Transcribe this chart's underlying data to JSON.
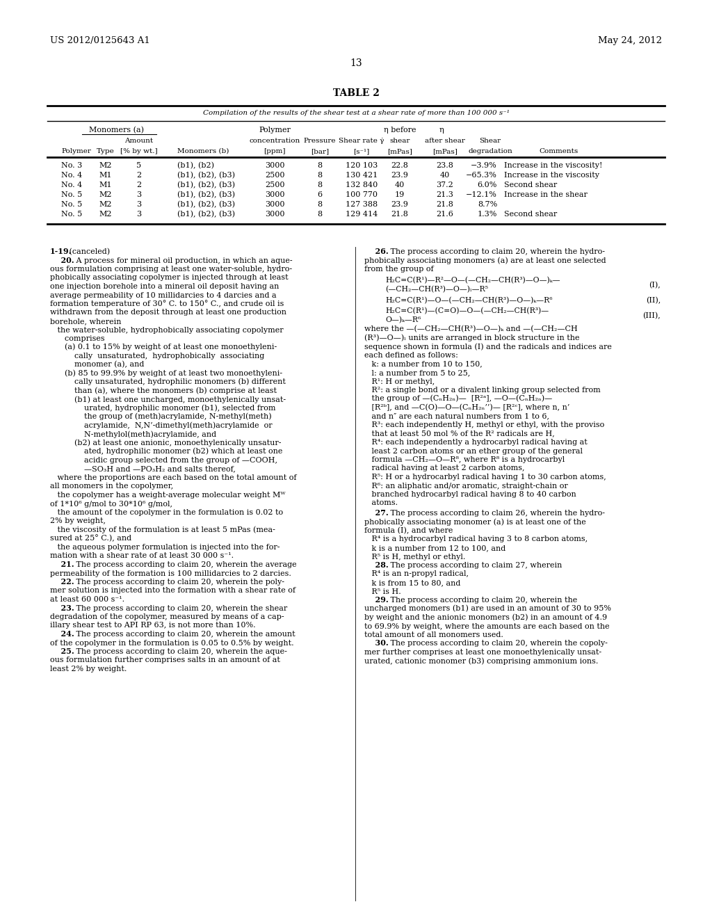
{
  "header_left": "US 2012/0125643 A1",
  "header_right": "May 24, 2012",
  "page_number": "13",
  "table_title": "TABLE 2",
  "table_subtitle": "Compilation of the results of the shear test at a shear rate of more than 100 000 s⁻¹",
  "table_data": [
    [
      "No. 3",
      "M2",
      "5",
      "(b1), (b2)",
      "3000",
      "8",
      "120 103",
      "22.8",
      "23.8",
      "−3.9%",
      "Increase in the viscosity!"
    ],
    [
      "No. 4",
      "M1",
      "2",
      "(b1), (b2), (b3)",
      "2500",
      "8",
      "130 421",
      "23.9",
      "40",
      "−65.3%",
      "Increase in the viscosity"
    ],
    [
      "No. 4",
      "M1",
      "2",
      "(b1), (b2), (b3)",
      "2500",
      "8",
      "132 840",
      "40",
      "37.2",
      "6.0%",
      "Second shear"
    ],
    [
      "No. 5",
      "M2",
      "3",
      "(b1), (b2), (b3)",
      "3000",
      "6",
      "100 770",
      "19",
      "21.3",
      "−12.1%",
      "Increase in the shear"
    ],
    [
      "No. 5",
      "M2",
      "3",
      "(b1), (b2), (b3)",
      "3000",
      "8",
      "127 388",
      "23.9",
      "21.8",
      "8.7%",
      ""
    ],
    [
      "No. 5",
      "M2",
      "3",
      "(b1), (b2), (b3)",
      "3000",
      "8",
      "129 414",
      "21.8",
      "21.6",
      "1.3%",
      "Second shear"
    ]
  ]
}
